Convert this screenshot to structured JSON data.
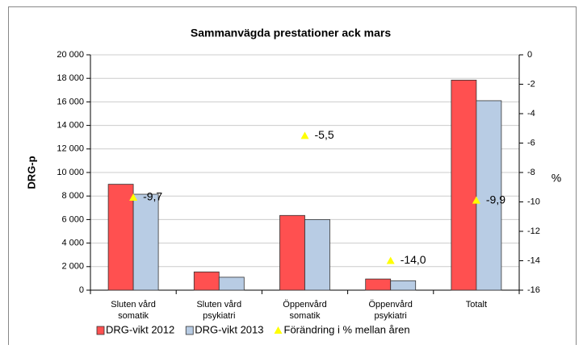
{
  "chart_data": {
    "type": "bar",
    "title": "Sammanvägda prestationer ack mars",
    "ylabel": "DRG-p",
    "y2label": "%",
    "categories": [
      "Sluten vård\nsomatik",
      "Sluten vård\npsykiatri",
      "Öppenvård\nsomatik",
      "Öppenvård\npsykiatri",
      "Totalt"
    ],
    "series": [
      {
        "name": "DRG-vikt 2012",
        "color": "#ff5050",
        "values": [
          9000,
          1550,
          6350,
          950,
          17850
        ]
      },
      {
        "name": "DRG-vikt 2013",
        "color": "#b8cce4",
        "values": [
          8150,
          1100,
          6000,
          800,
          16100
        ]
      },
      {
        "name": "Förändring i % mellan åren",
        "color": "#ffff00",
        "type": "scatter",
        "axis": "y2",
        "values": [
          -9.7,
          null,
          -5.5,
          -14.0,
          -9.9
        ],
        "value_labels": [
          "-9,7",
          null,
          "-5,5",
          "-14,0",
          "-9,9"
        ]
      }
    ],
    "ylim": [
      0,
      20000
    ],
    "yticks": [
      {
        "value": 0,
        "label": "0"
      },
      {
        "value": 2000,
        "label": "2 000"
      },
      {
        "value": 4000,
        "label": "4 000"
      },
      {
        "value": 6000,
        "label": "6 000"
      },
      {
        "value": 8000,
        "label": "8 000"
      },
      {
        "value": 10000,
        "label": "10 000"
      },
      {
        "value": 12000,
        "label": "12 000"
      },
      {
        "value": 14000,
        "label": "14 000"
      },
      {
        "value": 16000,
        "label": "16 000"
      },
      {
        "value": 18000,
        "label": "18 000"
      },
      {
        "value": 20000,
        "label": "20 000"
      }
    ],
    "y2lim": [
      -16,
      0
    ],
    "y2ticks": [
      0,
      -2,
      -4,
      -6,
      -8,
      -10,
      -12,
      -14,
      -16
    ],
    "grid": true,
    "legend": "bottom"
  }
}
